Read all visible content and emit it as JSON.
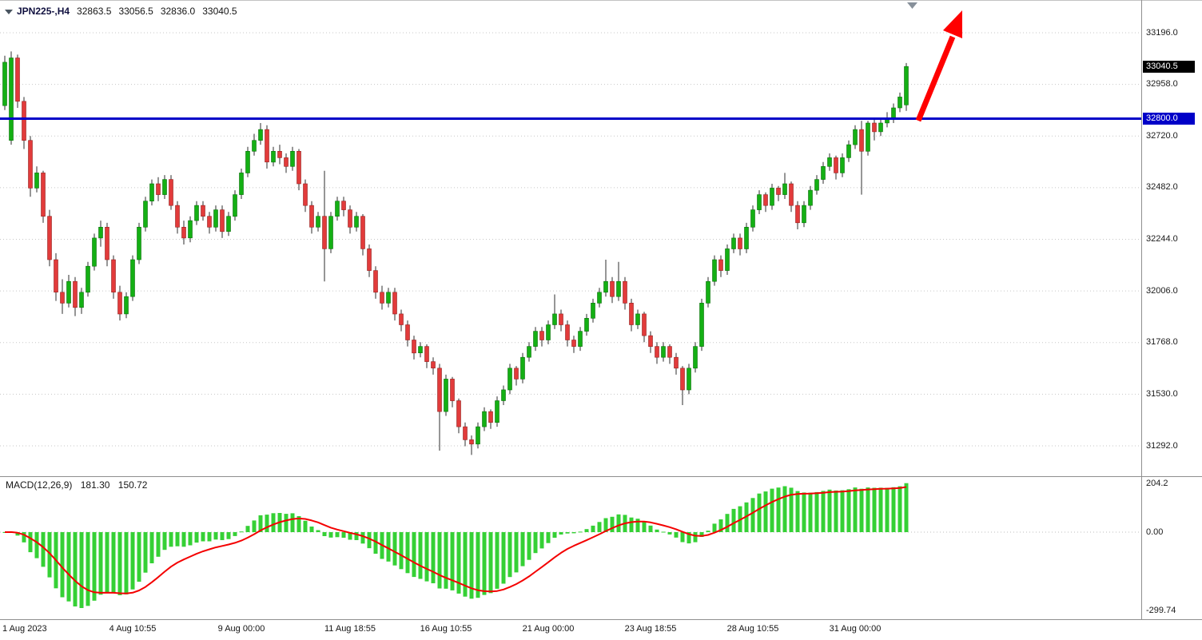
{
  "header": {
    "symbol_period": "JPN225-,H4",
    "open": "32863.5",
    "high": "33056.5",
    "low": "32836.0",
    "close": "33040.5"
  },
  "indicator": {
    "label": "MACD(12,26,9)",
    "macd_value": "181.30",
    "signal_value": "150.72"
  },
  "annotations": {
    "arrow": {
      "color": "#FF0000",
      "direction": "up-right"
    }
  },
  "chart_data": {
    "type": "candlestick",
    "symbol": "JPN225-",
    "timeframe": "H4",
    "last_ohlc": {
      "open": 32863.5,
      "high": 33056.5,
      "low": 32836.0,
      "close": 33040.5
    },
    "colors": {
      "bull": "#14B014",
      "bull_border": "#0B700B",
      "bear": "#E23B3B",
      "bear_border": "#94211E",
      "wick": "#2e2e2e",
      "grid": "#c7c7c7",
      "hline": "#0000C8",
      "tag_last_bg": "#000000",
      "tag_line_bg": "#0000C8",
      "histogram": "#35D035",
      "signal": "#F40000"
    },
    "y_axis": {
      "ticks": [
        "33196.0",
        "32958.0",
        "32720.0",
        "32482.0",
        "32244.0",
        "32006.0",
        "31768.0",
        "31530.0",
        "31292.0"
      ]
    },
    "price_tags": [
      {
        "label": "33040.5",
        "value": 33040.5,
        "type": "last"
      },
      {
        "label": "32800.0",
        "value": 32800.0,
        "type": "line"
      }
    ],
    "horizontal_line": {
      "value": 32800.0
    },
    "x_axis": {
      "ticks": [
        {
          "label": "1 Aug 2023",
          "index": 0
        },
        {
          "label": "4 Aug 10:55",
          "index": 20
        },
        {
          "label": "9 Aug 00:00",
          "index": 37
        },
        {
          "label": "11 Aug 18:55",
          "index": 54
        },
        {
          "label": "16 Aug 10:55",
          "index": 69
        },
        {
          "label": "21 Aug 00:00",
          "index": 85
        },
        {
          "label": "23 Aug 18:55",
          "index": 101
        },
        {
          "label": "28 Aug 10:55",
          "index": 117
        },
        {
          "label": "31 Aug 00:00",
          "index": 133
        }
      ]
    },
    "macd_panel": {
      "name": "MACD",
      "params": "12,26,9",
      "macd": 181.3,
      "signal": 150.72,
      "y_ticks": [
        "204.2",
        "0.00",
        "-299.74"
      ]
    },
    "candles": [
      [
        32860,
        33090,
        32840,
        33060
      ],
      [
        32700,
        33110,
        32680,
        33080
      ],
      [
        33080,
        33095,
        32850,
        32880
      ],
      [
        32880,
        32900,
        32660,
        32700
      ],
      [
        32700,
        32720,
        32440,
        32480
      ],
      [
        32480,
        32580,
        32460,
        32550
      ],
      [
        32550,
        32560,
        32320,
        32350
      ],
      [
        32350,
        32380,
        32120,
        32150
      ],
      [
        32150,
        32180,
        31960,
        32000
      ],
      [
        32000,
        32060,
        31900,
        31950
      ],
      [
        31950,
        32080,
        31930,
        32050
      ],
      [
        32050,
        32070,
        31890,
        31930
      ],
      [
        31930,
        32020,
        31900,
        32000
      ],
      [
        32000,
        32140,
        31980,
        32120
      ],
      [
        32120,
        32270,
        32100,
        32250
      ],
      [
        32250,
        32330,
        32210,
        32300
      ],
      [
        32300,
        32320,
        32120,
        32150
      ],
      [
        32150,
        32170,
        31970,
        32000
      ],
      [
        32000,
        32030,
        31870,
        31900
      ],
      [
        31900,
        32000,
        31880,
        31980
      ],
      [
        31980,
        32170,
        31960,
        32150
      ],
      [
        32150,
        32320,
        32130,
        32300
      ],
      [
        32300,
        32440,
        32280,
        32420
      ],
      [
        32420,
        32520,
        32400,
        32500
      ],
      [
        32500,
        32530,
        32420,
        32450
      ],
      [
        32450,
        32540,
        32430,
        32520
      ],
      [
        32520,
        32540,
        32380,
        32400
      ],
      [
        32400,
        32420,
        32270,
        32300
      ],
      [
        32300,
        32330,
        32220,
        32250
      ],
      [
        32250,
        32350,
        32230,
        32330
      ],
      [
        32330,
        32420,
        32310,
        32400
      ],
      [
        32400,
        32420,
        32330,
        32350
      ],
      [
        32350,
        32370,
        32270,
        32300
      ],
      [
        32300,
        32400,
        32280,
        32380
      ],
      [
        32380,
        32400,
        32250,
        32280
      ],
      [
        32280,
        32370,
        32260,
        32350
      ],
      [
        32350,
        32470,
        32330,
        32450
      ],
      [
        32450,
        32570,
        32430,
        32550
      ],
      [
        32550,
        32670,
        32530,
        32650
      ],
      [
        32650,
        32730,
        32630,
        32700
      ],
      [
        32700,
        32780,
        32680,
        32750
      ],
      [
        32750,
        32770,
        32570,
        32600
      ],
      [
        32600,
        32670,
        32580,
        32650
      ],
      [
        32650,
        32680,
        32590,
        32620
      ],
      [
        32620,
        32640,
        32550,
        32580
      ],
      [
        32580,
        32670,
        32560,
        32650
      ],
      [
        32650,
        32660,
        32470,
        32500
      ],
      [
        32500,
        32520,
        32370,
        32400
      ],
      [
        32400,
        32420,
        32270,
        32300
      ],
      [
        32300,
        32370,
        32280,
        32350
      ],
      [
        32350,
        32560,
        32050,
        32200
      ],
      [
        32200,
        32370,
        32180,
        32350
      ],
      [
        32350,
        32440,
        32330,
        32420
      ],
      [
        32420,
        32440,
        32350,
        32380
      ],
      [
        32380,
        32400,
        32270,
        32300
      ],
      [
        32300,
        32370,
        32280,
        32350
      ],
      [
        32350,
        32360,
        32170,
        32200
      ],
      [
        32200,
        32220,
        32070,
        32100
      ],
      [
        32100,
        32120,
        31970,
        32000
      ],
      [
        32000,
        32030,
        31920,
        31950
      ],
      [
        31950,
        32020,
        31930,
        32000
      ],
      [
        32000,
        32020,
        31870,
        31900
      ],
      [
        31900,
        31920,
        31820,
        31850
      ],
      [
        31850,
        31870,
        31750,
        31780
      ],
      [
        31780,
        31800,
        31690,
        31720
      ],
      [
        31720,
        31770,
        31700,
        31750
      ],
      [
        31750,
        31760,
        31650,
        31680
      ],
      [
        31680,
        31700,
        31620,
        31650
      ],
      [
        31650,
        31670,
        31270,
        31450
      ],
      [
        31450,
        31620,
        31430,
        31600
      ],
      [
        31600,
        31610,
        31470,
        31500
      ],
      [
        31500,
        31510,
        31350,
        31380
      ],
      [
        31380,
        31400,
        31290,
        31320
      ],
      [
        31320,
        31340,
        31250,
        31300
      ],
      [
        31300,
        31400,
        31280,
        31380
      ],
      [
        31380,
        31470,
        31360,
        31450
      ],
      [
        31450,
        31460,
        31370,
        31400
      ],
      [
        31400,
        31520,
        31380,
        31500
      ],
      [
        31500,
        31570,
        31480,
        31550
      ],
      [
        31550,
        31670,
        31530,
        31650
      ],
      [
        31650,
        31660,
        31570,
        31600
      ],
      [
        31600,
        31720,
        31580,
        31700
      ],
      [
        31700,
        31770,
        31680,
        31750
      ],
      [
        31750,
        31840,
        31730,
        31820
      ],
      [
        31820,
        31840,
        31750,
        31780
      ],
      [
        31780,
        31870,
        31760,
        31850
      ],
      [
        31850,
        31990,
        31830,
        31900
      ],
      [
        31900,
        31920,
        31820,
        31850
      ],
      [
        31850,
        31870,
        31750,
        31780
      ],
      [
        31780,
        31800,
        31720,
        31750
      ],
      [
        31750,
        31840,
        31730,
        31820
      ],
      [
        31820,
        31900,
        31800,
        31880
      ],
      [
        31880,
        31970,
        31860,
        31950
      ],
      [
        31950,
        32020,
        31930,
        32000
      ],
      [
        32000,
        32150,
        31980,
        32050
      ],
      [
        32050,
        32070,
        31950,
        31980
      ],
      [
        31980,
        32140,
        31960,
        32050
      ],
      [
        32050,
        32070,
        31920,
        31950
      ],
      [
        31950,
        31970,
        31820,
        31850
      ],
      [
        31850,
        31920,
        31830,
        31900
      ],
      [
        31900,
        31910,
        31770,
        31800
      ],
      [
        31800,
        31820,
        31720,
        31750
      ],
      [
        31750,
        31770,
        31670,
        31700
      ],
      [
        31700,
        31770,
        31680,
        31750
      ],
      [
        31750,
        31760,
        31670,
        31700
      ],
      [
        31700,
        31720,
        31620,
        31650
      ],
      [
        31650,
        31660,
        31480,
        31550
      ],
      [
        31550,
        31670,
        31530,
        31650
      ],
      [
        31650,
        31770,
        31630,
        31750
      ],
      [
        31750,
        31970,
        31730,
        31950
      ],
      [
        31950,
        32070,
        31930,
        32050
      ],
      [
        32050,
        32170,
        32030,
        32150
      ],
      [
        32150,
        32170,
        32070,
        32100
      ],
      [
        32100,
        32220,
        32080,
        32200
      ],
      [
        32200,
        32270,
        32180,
        32250
      ],
      [
        32250,
        32270,
        32170,
        32200
      ],
      [
        32200,
        32320,
        32180,
        32300
      ],
      [
        32300,
        32400,
        32280,
        32380
      ],
      [
        32380,
        32470,
        32360,
        32450
      ],
      [
        32450,
        32460,
        32370,
        32400
      ],
      [
        32400,
        32500,
        32380,
        32480
      ],
      [
        32480,
        32490,
        32420,
        32450
      ],
      [
        32450,
        32550,
        32430,
        32500
      ],
      [
        32500,
        32510,
        32370,
        32400
      ],
      [
        32400,
        32420,
        32290,
        32320
      ],
      [
        32320,
        32420,
        32300,
        32400
      ],
      [
        32400,
        32490,
        32380,
        32470
      ],
      [
        32470,
        32540,
        32450,
        32520
      ],
      [
        32520,
        32600,
        32500,
        32580
      ],
      [
        32580,
        32640,
        32560,
        32620
      ],
      [
        32620,
        32630,
        32520,
        32550
      ],
      [
        32550,
        32640,
        32530,
        32620
      ],
      [
        32620,
        32700,
        32600,
        32680
      ],
      [
        32680,
        32770,
        32660,
        32750
      ],
      [
        32750,
        32790,
        32450,
        32650
      ],
      [
        32650,
        32790,
        32630,
        32780
      ],
      [
        32780,
        32800,
        32700,
        32740
      ],
      [
        32740,
        32800,
        32720,
        32780
      ],
      [
        32780,
        32830,
        32760,
        32800
      ],
      [
        32800,
        32870,
        32780,
        32850
      ],
      [
        32850,
        32920,
        32830,
        32900
      ],
      [
        32863.5,
        33056.5,
        32836.0,
        33040.5
      ]
    ]
  }
}
